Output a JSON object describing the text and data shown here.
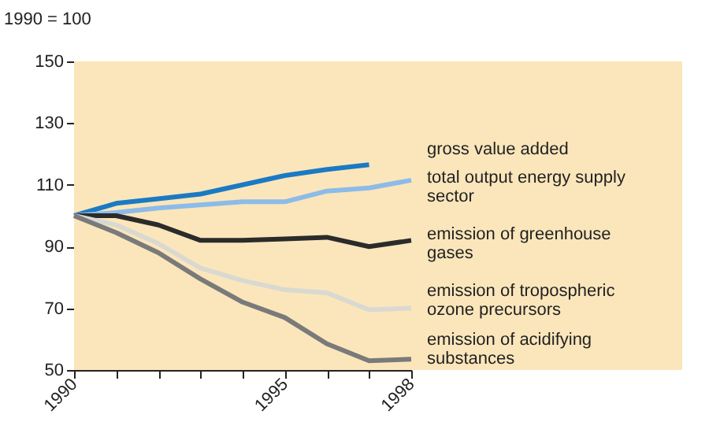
{
  "chart_data": {
    "type": "line",
    "ylabel": "1990 = 100",
    "x": [
      1990,
      1991,
      1992,
      1993,
      1994,
      1995,
      1996,
      1997,
      1998
    ],
    "series": [
      {
        "name": "gross value added",
        "color": "#1a7ac4",
        "values": [
          100,
          104,
          105.5,
          107,
          110,
          113,
          115,
          116.5,
          null
        ]
      },
      {
        "name": "total output energy supply sector",
        "color": "#8cbbe8",
        "values": [
          100,
          101,
          102.5,
          103.5,
          104.5,
          104.5,
          108,
          109,
          111.5
        ]
      },
      {
        "name": "emission of greenhouse gases",
        "color": "#2b2b2b",
        "values": [
          100,
          100,
          97,
          92,
          92,
          92.5,
          93,
          90,
          92
        ]
      },
      {
        "name": "emission of tropospheric ozone precursors",
        "color": "#d9d9d2",
        "values": [
          100,
          97,
          91,
          83,
          79,
          76,
          75,
          69.5,
          70
        ]
      },
      {
        "name": "emission of acidifying substances",
        "color": "#7a7a7a",
        "values": [
          100,
          94.5,
          88,
          79.5,
          72,
          67,
          58.5,
          53,
          53.5
        ]
      }
    ],
    "xlim": [
      1990,
      1998
    ],
    "xticks": [
      1990,
      {
        "value": 1991,
        "label": null
      },
      {
        "value": 1992,
        "label": null
      },
      {
        "value": 1993,
        "label": null
      },
      {
        "value": 1994,
        "label": null
      },
      1995,
      {
        "value": 1996,
        "label": null
      },
      {
        "value": 1997,
        "label": null
      },
      1998
    ],
    "ylim": [
      50,
      150
    ],
    "yticks": [
      50,
      70,
      90,
      110,
      130,
      150
    ],
    "legend": "right",
    "marker": "none",
    "line_style": "solid"
  }
}
